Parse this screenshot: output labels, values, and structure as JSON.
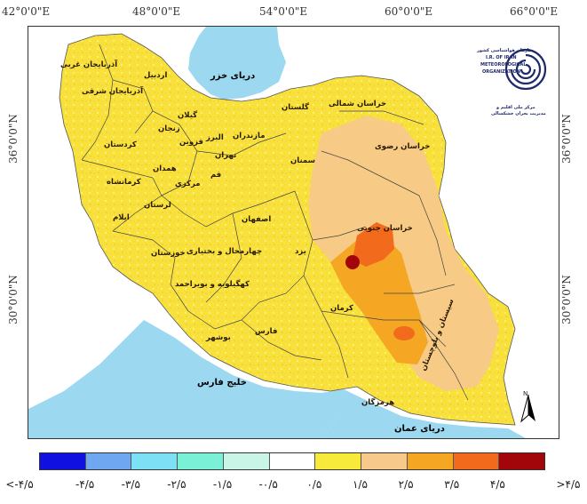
{
  "axes": {
    "top": [
      "42°0'0\"E",
      "48°0'0\"E",
      "54°0'0\"E",
      "60°0'0\"E",
      "66°0'0\"E"
    ],
    "left": [
      "36°0'0\"N",
      "30°0'0\"N"
    ],
    "right": [
      "36°0'0\"N",
      "30°0'0\"N"
    ]
  },
  "water_labels": {
    "caspian": "دریای خزر",
    "persian_gulf": "خلیج فارس",
    "oman_sea": "دریای عمان"
  },
  "provinces": [
    "آذربایجان غربی",
    "آذربایجان شرقی",
    "اردبیل",
    "گیلان",
    "زنجان",
    "قزوین",
    "البرز",
    "مازندران",
    "گلستان",
    "خراسان شمالی",
    "خراسان رضوی",
    "سمنان",
    "تهران",
    "قم",
    "کردستان",
    "همدان",
    "مرکزی",
    "کرمانشاه",
    "لرستان",
    "ایلام",
    "خوزستان",
    "اصفهان",
    "چهارمحال و بختیاری",
    "کهگیلویه و بویراحمد",
    "یزد",
    "خراسان جنوبی",
    "کرمان",
    "فارس",
    "بوشهر",
    "هرمزگان",
    "سیستان و بلوچستان"
  ],
  "logo": {
    "line1": "سازمان هواشناسی کشور",
    "line2": "I.R. OF IRAN",
    "line3": "METEOROLOGICAL",
    "line4": "ORGANIZATION",
    "line5": "مرکز ملی اقلیم و",
    "line6": "مدیریت بحران خشکسالی"
  },
  "north_letter": "N",
  "legend": {
    "colors": [
      "#1010e0",
      "#6fa8f0",
      "#7ee0f5",
      "#7af0d6",
      "#c8f5e6",
      "#ffffff",
      "#f8ea3a",
      "#f7c98a",
      "#f5a623",
      "#f26a1b",
      "#a3060a"
    ],
    "labels": [
      "<-۴/۵",
      "-۴/۵",
      "-۳/۵",
      "-۲/۵",
      "-۱/۵",
      "-۰/۵",
      "۰/۵",
      "۱/۵",
      "۲/۵",
      "۳/۵",
      "۴/۵",
      ">۴/۵"
    ]
  }
}
